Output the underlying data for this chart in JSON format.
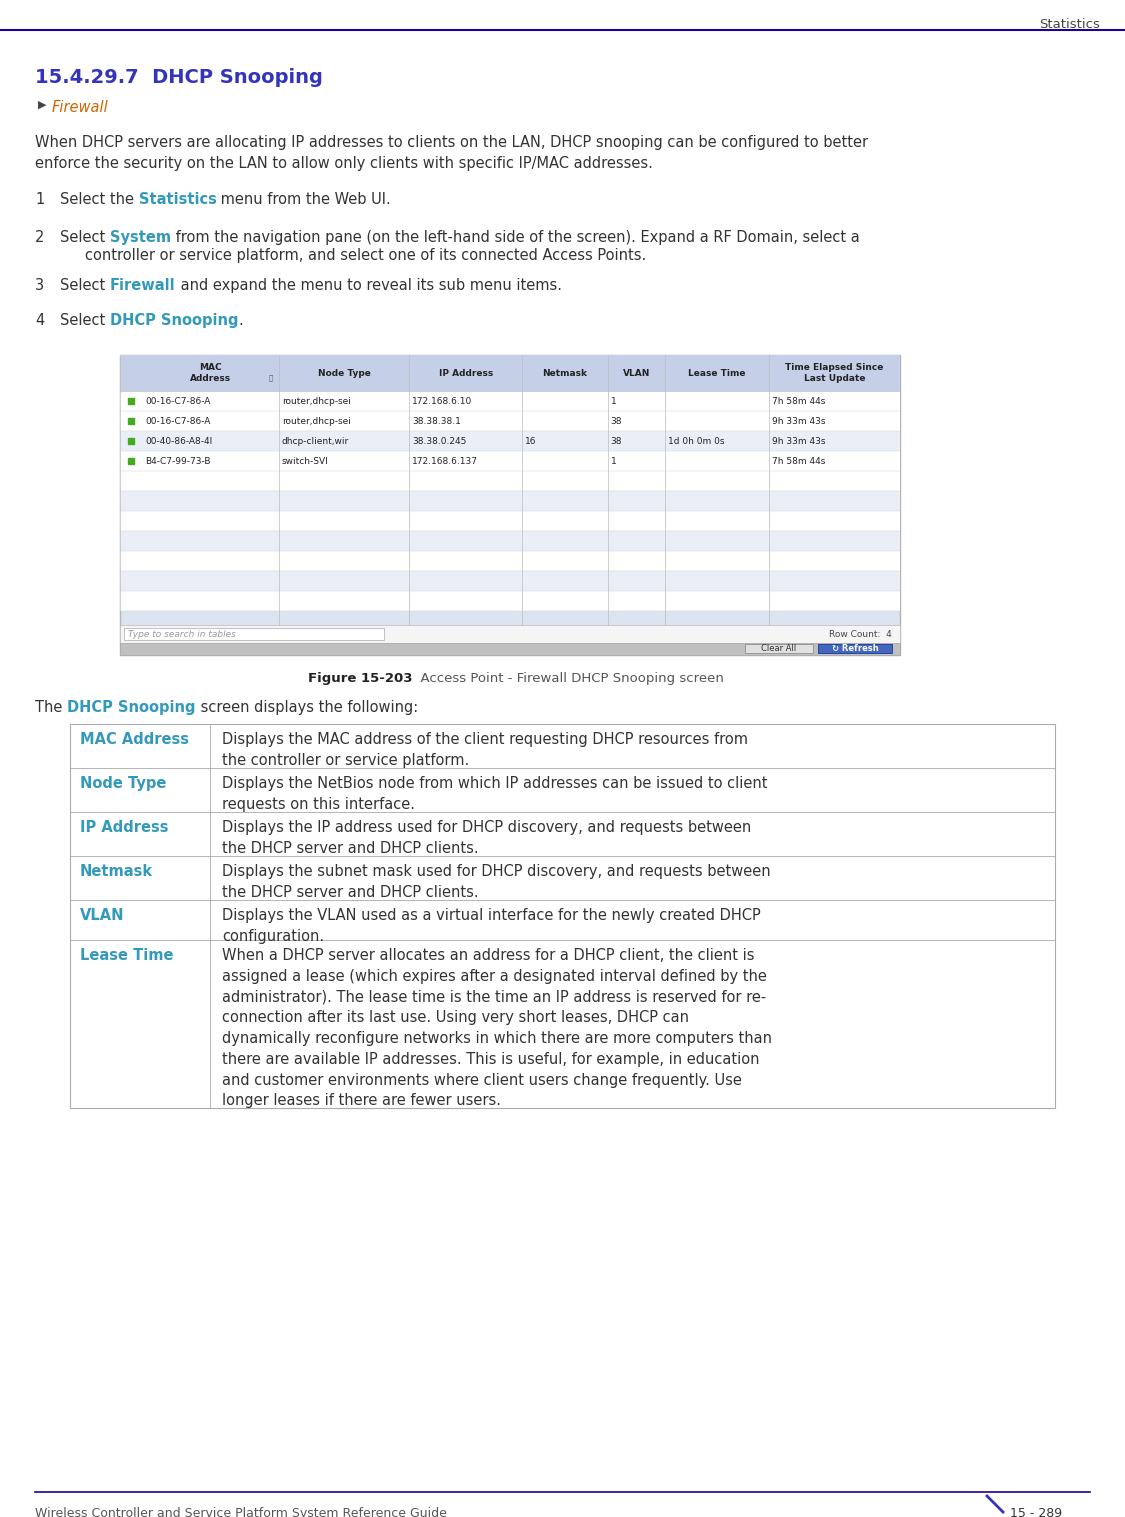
{
  "page_title": "Statistics",
  "section_title": "15.4.29.7  DHCP Snooping",
  "breadcrumb": "Firewall",
  "intro_text": "When DHCP servers are allocating IP addresses to clients on the LAN, DHCP snooping can be configured to better\nenforce the security on the LAN to allow only clients with specific IP/MAC addresses.",
  "steps": [
    {
      "num": "1",
      "prefix": "Select the ",
      "bold": "Statistics",
      "suffix": " menu from the Web UI.",
      "indent": false
    },
    {
      "num": "2",
      "prefix": "Select ",
      "bold": "System",
      "suffix": " from the navigation pane (on the left-hand side of the screen). Expand a RF Domain, select a",
      "suffix2": "controller or service platform, and select one of its connected Access Points.",
      "indent": true
    },
    {
      "num": "3",
      "prefix": "Select ",
      "bold": "Firewall",
      "suffix": " and expand the menu to reveal its sub menu items.",
      "indent": false
    },
    {
      "num": "4",
      "prefix": "Select ",
      "bold": "DHCP Snooping",
      "suffix": ".",
      "indent": false
    }
  ],
  "screen_rows": [
    [
      "00-16-C7-86-A",
      "router,dhcp-sei",
      "172.168.6.10",
      "",
      "1",
      "",
      "7h 58m 44s"
    ],
    [
      "00-16-C7-86-A",
      "router,dhcp-sei",
      "38.38.38.1",
      "",
      "38",
      "",
      "9h 33m 43s"
    ],
    [
      "00-40-86-A8-4I",
      "dhcp-client,wir",
      "38.38.0.245",
      "16",
      "38",
      "1d 0h 0m 0s",
      "9h 33m 43s"
    ],
    [
      "B4-C7-99-73-B",
      "switch-SVI",
      "172.168.6.137",
      "",
      "1",
      "",
      "7h 58m 44s"
    ]
  ],
  "figure_caption_bold": "Figure 15-203",
  "figure_caption_rest": "  Access Point - Firewall DHCP Snooping screen",
  "table_rows": [
    {
      "term": "MAC Address",
      "definition": "Displays the MAC address of the client requesting DHCP resources from\nthe controller or service platform."
    },
    {
      "term": "Node Type",
      "definition": "Displays the NetBios node from which IP addresses can be issued to client\nrequests on this interface."
    },
    {
      "term": "IP Address",
      "definition": "Displays the IP address used for DHCP discovery, and requests between\nthe DHCP server and DHCP clients."
    },
    {
      "term": "Netmask",
      "definition": "Displays the subnet mask used for DHCP discovery, and requests between\nthe DHCP server and DHCP clients."
    },
    {
      "term": "VLAN",
      "definition": "Displays the VLAN used as a virtual interface for the newly created DHCP\nconfiguration."
    },
    {
      "term": "Lease Time",
      "definition": "When a DHCP server allocates an address for a DHCP client, the client is\nassigned a lease (which expires after a designated interval defined by the\nadministrator). The lease time is the time an IP address is reserved for re-\nconnection after its last use. Using very short leases, DHCP can\ndynamically reconfigure networks in which there are more computers than\nthere are available IP addresses. This is useful, for example, in education\nand customer environments where client users change frequently. Use\nlonger leases if there are fewer users."
    }
  ],
  "footer_left": "Wireless Controller and Service Platform System Reference Guide",
  "footer_right": "15 - 289",
  "colors": {
    "top_line": "#1a0099",
    "page_title": "#444444",
    "section_title": "#3333bb",
    "breadcrumb_arrow": "#444444",
    "breadcrumb_text": "#cc6600",
    "body_text": "#333333",
    "highlight": "#3399bb",
    "table_term": "#3399bb",
    "table_border": "#aaaaaa",
    "screen_bg": "#dce4f0",
    "screen_header_bg": "#c5d0e8",
    "screen_border": "#aaaaaa",
    "screen_row_even": "#ffffff",
    "screen_row_odd": "#eaeff7",
    "green_dot": "#44aa22",
    "search_bar_bg": "#f0f0f0",
    "btn_bar_bg": "#c8c8c8",
    "clear_btn_bg": "#e0e0e0",
    "refresh_btn_bg": "#4466bb",
    "footer_line": "#1a0099",
    "footer_text": "#555555",
    "slash_color": "#3333bb"
  }
}
